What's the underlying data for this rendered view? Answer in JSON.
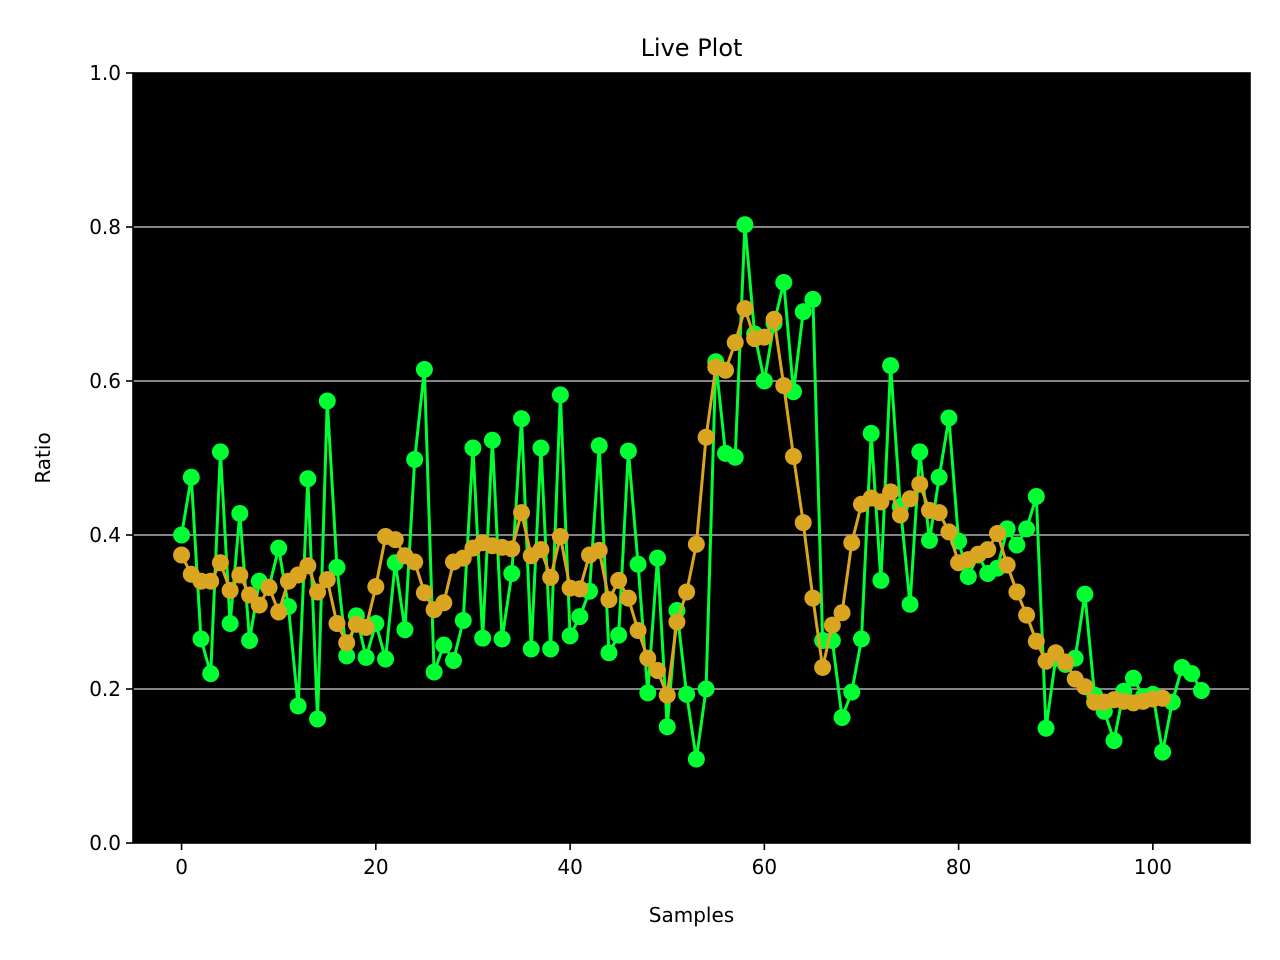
{
  "chart_data": {
    "type": "line",
    "title": "Live Plot",
    "xlabel": "Samples",
    "ylabel": "Ratio",
    "xlim": [
      -5,
      110
    ],
    "ylim": [
      0,
      1
    ],
    "xticks": [
      "0",
      "20",
      "40",
      "60",
      "80",
      "100"
    ],
    "yticks": [
      "0.0",
      "0.2",
      "0.4",
      "0.6",
      "0.8",
      "1.0"
    ],
    "grid": "horizontal",
    "plot_background": "#000000",
    "series": [
      {
        "color": "#00ff33",
        "x": [
          0,
          1,
          2,
          3,
          4,
          5,
          6,
          7,
          8,
          9,
          10,
          11,
          12,
          13,
          14,
          15,
          16,
          17,
          18,
          19,
          20,
          21,
          22,
          23,
          24,
          25,
          26,
          27,
          28,
          29,
          30,
          31,
          32,
          33,
          34,
          35,
          36,
          37,
          38,
          39,
          40,
          41,
          42,
          43,
          44,
          45,
          46,
          47,
          48,
          49,
          50,
          51,
          52,
          53,
          54,
          55,
          56,
          57,
          58,
          59,
          60,
          61,
          62,
          63,
          64,
          65,
          66,
          67,
          68,
          69,
          70,
          71,
          72,
          73,
          74,
          75,
          76,
          77,
          78,
          79,
          80,
          81,
          82,
          83,
          84,
          85,
          86,
          87,
          88,
          89,
          90,
          91,
          92,
          93,
          94,
          95,
          96,
          97,
          98,
          99,
          100,
          101,
          102,
          103,
          104,
          105
        ],
        "values": [
          0.4,
          0.475,
          0.265,
          0.22,
          0.508,
          0.285,
          0.428,
          0.263,
          0.34,
          0.332,
          0.383,
          0.307,
          0.178,
          0.473,
          0.161,
          0.574,
          0.358,
          0.243,
          0.295,
          0.241,
          0.285,
          0.239,
          0.364,
          0.277,
          0.498,
          0.615,
          0.222,
          0.257,
          0.237,
          0.289,
          0.513,
          0.266,
          0.523,
          0.265,
          0.35,
          0.551,
          0.252,
          0.513,
          0.252,
          0.582,
          0.269,
          0.294,
          0.327,
          0.516,
          0.247,
          0.27,
          0.509,
          0.362,
          0.195,
          0.37,
          0.151,
          0.302,
          0.193,
          0.109,
          0.2,
          0.625,
          0.506,
          0.501,
          0.803,
          0.661,
          0.6,
          0.675,
          0.728,
          0.586,
          0.69,
          0.706,
          0.263,
          0.263,
          0.163,
          0.196,
          0.265,
          0.532,
          0.341,
          0.62,
          0.437,
          0.31,
          0.508,
          0.393,
          0.475,
          0.552,
          0.392,
          0.346,
          0.374,
          0.35,
          0.357,
          0.408,
          0.387,
          0.408,
          0.45,
          0.149,
          0.24,
          0.232,
          0.24,
          0.323,
          0.192,
          0.171,
          0.133,
          0.197,
          0.214,
          0.19,
          0.193,
          0.118,
          0.183,
          0.228,
          0.22,
          0.198
        ]
      },
      {
        "color": "#daa520",
        "x": [
          0,
          1,
          2,
          3,
          4,
          5,
          6,
          7,
          8,
          9,
          10,
          11,
          12,
          13,
          14,
          15,
          16,
          17,
          18,
          19,
          20,
          21,
          22,
          23,
          24,
          25,
          26,
          27,
          28,
          29,
          30,
          31,
          32,
          33,
          34,
          35,
          36,
          37,
          38,
          39,
          40,
          41,
          42,
          43,
          44,
          45,
          46,
          47,
          48,
          49,
          50,
          51,
          52,
          53,
          54,
          55,
          56,
          57,
          58,
          59,
          60,
          61,
          62,
          63,
          64,
          65,
          66,
          67,
          68,
          69,
          70,
          71,
          72,
          73,
          74,
          75,
          76,
          77,
          78,
          79,
          80,
          81,
          82,
          83,
          84,
          85,
          86,
          87,
          88,
          89,
          90,
          91,
          92,
          93,
          94,
          95,
          96,
          97,
          98,
          99,
          100,
          101
        ],
        "values": [
          0.374,
          0.349,
          0.34,
          0.34,
          0.364,
          0.328,
          0.348,
          0.322,
          0.309,
          0.332,
          0.3,
          0.34,
          0.348,
          0.36,
          0.326,
          0.342,
          0.285,
          0.26,
          0.284,
          0.28,
          0.333,
          0.398,
          0.394,
          0.373,
          0.365,
          0.325,
          0.303,
          0.312,
          0.365,
          0.37,
          0.383,
          0.39,
          0.386,
          0.384,
          0.382,
          0.429,
          0.373,
          0.381,
          0.345,
          0.398,
          0.331,
          0.33,
          0.374,
          0.38,
          0.316,
          0.341,
          0.318,
          0.276,
          0.24,
          0.224,
          0.192,
          0.287,
          0.326,
          0.388,
          0.527,
          0.618,
          0.614,
          0.65,
          0.694,
          0.655,
          0.657,
          0.68,
          0.594,
          0.502,
          0.416,
          0.318,
          0.228,
          0.283,
          0.299,
          0.39,
          0.44,
          0.448,
          0.443,
          0.456,
          0.426,
          0.447,
          0.466,
          0.432,
          0.429,
          0.404,
          0.364,
          0.368,
          0.375,
          0.381,
          0.402,
          0.361,
          0.326,
          0.296,
          0.262,
          0.236,
          0.247,
          0.235,
          0.213,
          0.203,
          0.183,
          0.183,
          0.186,
          0.184,
          0.182,
          0.184,
          0.187,
          0.188
        ]
      }
    ]
  }
}
